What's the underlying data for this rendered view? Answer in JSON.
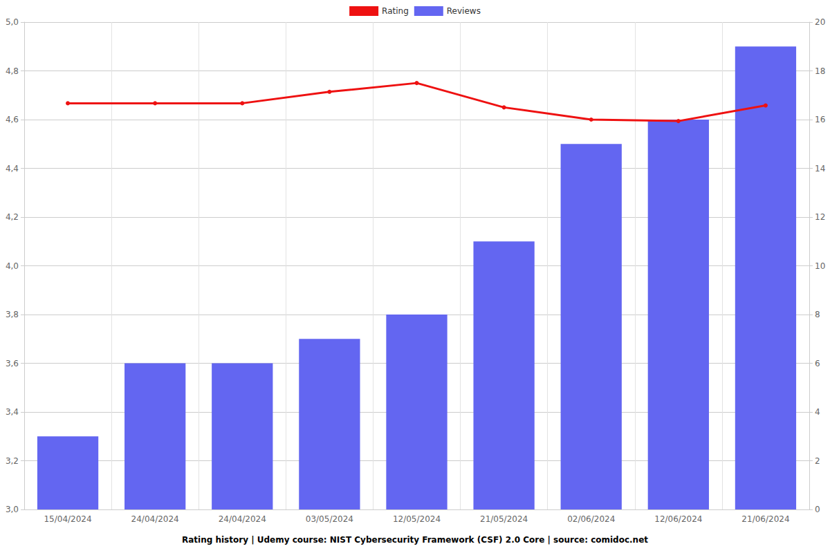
{
  "chart_data": {
    "type": "bar",
    "title": "Rating history | Udemy course: NIST Cybersecurity Framework (CSF) 2.0 Core | source: comidoc.net",
    "categories": [
      "15/04/2024",
      "24/04/2024",
      "24/04/2024",
      "03/05/2024",
      "12/05/2024",
      "21/05/2024",
      "02/06/2024",
      "12/06/2024",
      "21/06/2024"
    ],
    "series": [
      {
        "name": "Rating",
        "type": "line",
        "color": "#ee1111",
        "marker": "circle",
        "values": [
          4.667,
          4.667,
          4.667,
          4.714,
          4.75,
          4.65,
          4.6,
          4.594,
          4.658
        ]
      },
      {
        "name": "Reviews",
        "type": "bar",
        "color": "#6366f1",
        "axis": "y2",
        "values": [
          3,
          6,
          6,
          7,
          8,
          11,
          15,
          16,
          19
        ]
      }
    ],
    "ylim": [
      3.0,
      5.0
    ],
    "yticks": [
      {
        "value": 3.0,
        "label": "3,0"
      },
      {
        "value": 3.2,
        "label": "3,2"
      },
      {
        "value": 3.4,
        "label": "3,4"
      },
      {
        "value": 3.6,
        "label": "3,6"
      },
      {
        "value": 3.8,
        "label": "3,8"
      },
      {
        "value": 4.0,
        "label": "4,0"
      },
      {
        "value": 4.2,
        "label": "4,2"
      },
      {
        "value": 4.4,
        "label": "4,4"
      },
      {
        "value": 4.6,
        "label": "4,6"
      },
      {
        "value": 4.8,
        "label": "4,8"
      },
      {
        "value": 5.0,
        "label": "5,0"
      }
    ],
    "y2lim": [
      0,
      20
    ],
    "y2ticks": [
      0,
      2,
      4,
      6,
      8,
      10,
      12,
      14,
      16,
      18,
      20
    ],
    "grid": true,
    "legend": "top"
  }
}
